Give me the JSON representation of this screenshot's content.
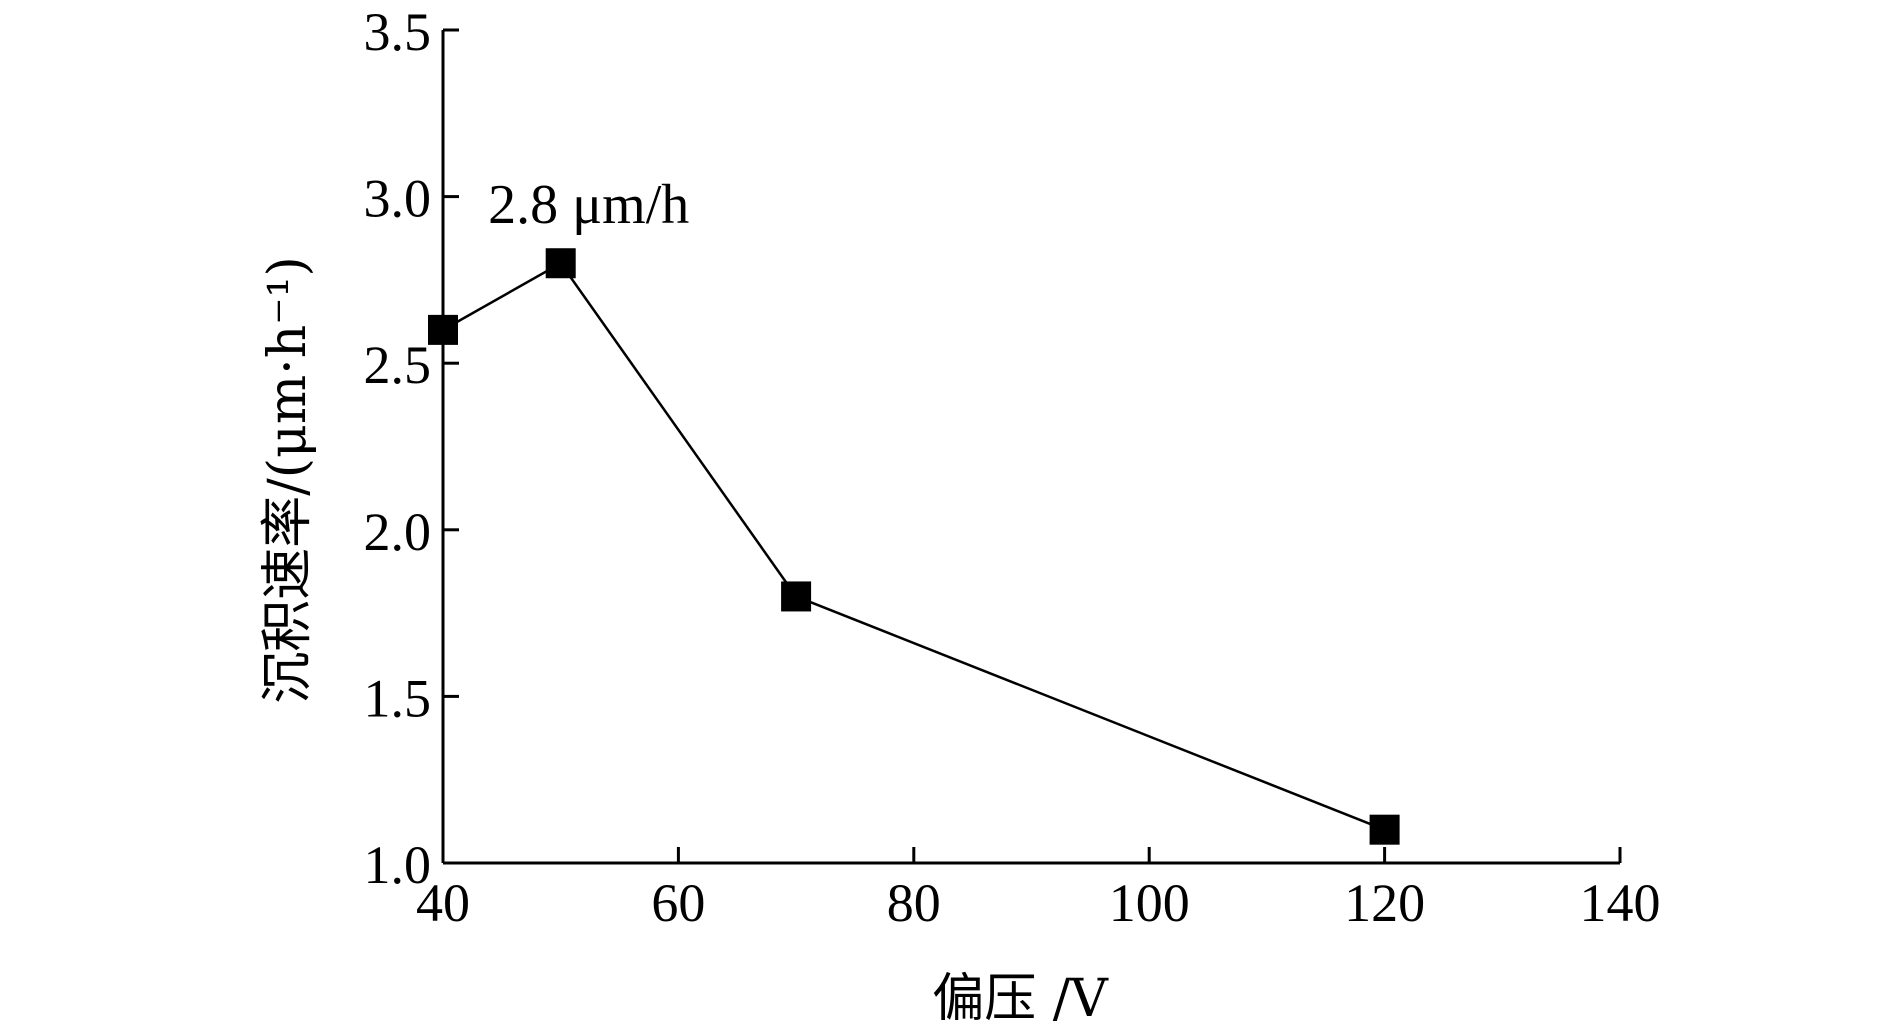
{
  "chart_data": {
    "type": "line",
    "xlabel": "偏压 /V",
    "ylabel": "沉积速率/(μm·h⁻¹)",
    "xlim": [
      40,
      140
    ],
    "ylim": [
      1.0,
      3.5
    ],
    "xticks": [
      40,
      60,
      80,
      100,
      120,
      140
    ],
    "yticks": [
      1.0,
      1.5,
      2.0,
      2.5,
      3.0,
      3.5
    ],
    "xtick_labels": [
      "40",
      "60",
      "80",
      "100",
      "120",
      "140"
    ],
    "ytick_labels": [
      "1.0",
      "1.5",
      "2.0",
      "2.5",
      "3.0",
      "3.5"
    ],
    "series": [
      {
        "x": [
          40,
          50,
          70,
          120
        ],
        "y": [
          2.6,
          2.8,
          1.8,
          1.1
        ],
        "marker": "filled-square",
        "color": "#000000"
      }
    ],
    "annotations": [
      {
        "text": "2.8 μm/h",
        "x": 50,
        "y": 2.8
      }
    ],
    "grid": false
  }
}
